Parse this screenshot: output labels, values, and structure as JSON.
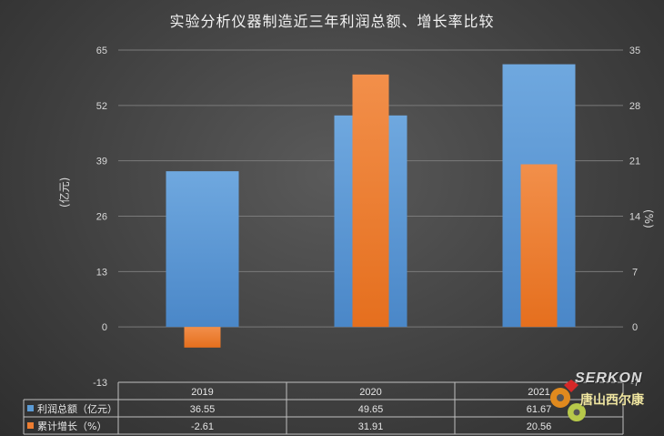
{
  "title": "实验分析仪器制造近三年利润总额、增长率比较",
  "watermark": {
    "brand": "SERKON",
    "name": "唐山西尔康"
  },
  "chart_data": {
    "type": "bar",
    "categories": [
      "2019",
      "2020",
      "2021"
    ],
    "series": [
      {
        "name": "利润总额（亿元）",
        "values": [
          36.55,
          49.65,
          61.67
        ],
        "axis": "left",
        "color": "#5b9bd5",
        "value_labels": [
          "36.55",
          "49.65",
          "61.67"
        ]
      },
      {
        "name": "累计增长（%）",
        "values": [
          -2.61,
          31.91,
          20.56
        ],
        "axis": "right",
        "color": "#ed7d31",
        "value_labels": [
          "-2.61",
          "31.91",
          "20.56"
        ]
      }
    ],
    "ylabel": "(亿元)",
    "ylabel_right": "(%)",
    "ylim": [
      -13,
      65
    ],
    "yticks": [
      "65",
      "52",
      "39",
      "26",
      "13",
      "0",
      "-13"
    ],
    "ylim_right": [
      -7,
      35
    ],
    "yticks_right": [
      "35",
      "28",
      "21",
      "14",
      "7",
      "0",
      "-7"
    ],
    "grid": true,
    "legend": "data-table"
  }
}
